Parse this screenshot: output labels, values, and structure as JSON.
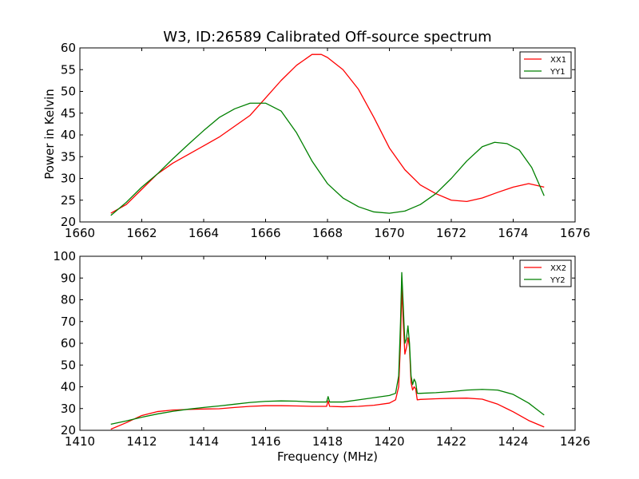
{
  "chart_data": [
    {
      "type": "line",
      "title": "W3, ID:26589 Calibrated Off-source spectrum",
      "xlabel": "",
      "ylabel": "Power in Kelvin",
      "xlim": [
        1660,
        1676
      ],
      "ylim": [
        20,
        60
      ],
      "xticks": [
        1660,
        1662,
        1664,
        1666,
        1668,
        1670,
        1672,
        1674,
        1676
      ],
      "yticks": [
        20,
        25,
        30,
        35,
        40,
        45,
        50,
        55,
        60
      ],
      "legend_position": "top-right",
      "series": [
        {
          "name": "XX1",
          "color": "#ff0000",
          "points": [
            [
              1661.0,
              22.0
            ],
            [
              1661.5,
              24.0
            ],
            [
              1662.0,
              27.5
            ],
            [
              1662.5,
              31.0
            ],
            [
              1663.0,
              33.5
            ],
            [
              1663.5,
              35.5
            ],
            [
              1664.0,
              37.5
            ],
            [
              1664.5,
              39.5
            ],
            [
              1665.0,
              42.0
            ],
            [
              1665.5,
              44.5
            ],
            [
              1666.0,
              48.5
            ],
            [
              1666.5,
              52.5
            ],
            [
              1667.0,
              56.0
            ],
            [
              1667.5,
              58.5
            ],
            [
              1667.8,
              58.5
            ],
            [
              1668.0,
              57.8
            ],
            [
              1668.5,
              55.0
            ],
            [
              1669.0,
              50.5
            ],
            [
              1669.5,
              44.0
            ],
            [
              1670.0,
              37.0
            ],
            [
              1670.5,
              32.0
            ],
            [
              1671.0,
              28.5
            ],
            [
              1671.5,
              26.5
            ],
            [
              1672.0,
              25.0
            ],
            [
              1672.5,
              24.7
            ],
            [
              1673.0,
              25.5
            ],
            [
              1673.5,
              26.8
            ],
            [
              1674.0,
              28.0
            ],
            [
              1674.5,
              28.8
            ],
            [
              1675.0,
              28.0
            ]
          ]
        },
        {
          "name": "YY1",
          "color": "#008000",
          "points": [
            [
              1661.0,
              21.5
            ],
            [
              1661.5,
              24.5
            ],
            [
              1662.0,
              28.0
            ],
            [
              1662.5,
              31.0
            ],
            [
              1663.0,
              34.5
            ],
            [
              1663.5,
              37.8
            ],
            [
              1664.0,
              41.0
            ],
            [
              1664.5,
              44.0
            ],
            [
              1665.0,
              46.0
            ],
            [
              1665.5,
              47.3
            ],
            [
              1666.0,
              47.3
            ],
            [
              1666.5,
              45.5
            ],
            [
              1667.0,
              40.5
            ],
            [
              1667.5,
              34.0
            ],
            [
              1668.0,
              28.8
            ],
            [
              1668.5,
              25.5
            ],
            [
              1669.0,
              23.5
            ],
            [
              1669.5,
              22.3
            ],
            [
              1670.0,
              22.0
            ],
            [
              1670.5,
              22.5
            ],
            [
              1671.0,
              24.0
            ],
            [
              1671.5,
              26.5
            ],
            [
              1672.0,
              30.0
            ],
            [
              1672.5,
              34.0
            ],
            [
              1673.0,
              37.3
            ],
            [
              1673.4,
              38.3
            ],
            [
              1673.8,
              38.0
            ],
            [
              1674.2,
              36.5
            ],
            [
              1674.6,
              32.5
            ],
            [
              1675.0,
              26.0
            ]
          ]
        }
      ]
    },
    {
      "type": "line",
      "title": "",
      "xlabel": "Frequency (MHz)",
      "ylabel": "",
      "xlim": [
        1410,
        1426
      ],
      "ylim": [
        20,
        100
      ],
      "xticks": [
        1410,
        1412,
        1414,
        1416,
        1418,
        1420,
        1422,
        1424,
        1426
      ],
      "yticks": [
        20,
        30,
        40,
        50,
        60,
        70,
        80,
        90,
        100
      ],
      "legend_position": "top-right",
      "series": [
        {
          "name": "XX2",
          "color": "#ff0000",
          "points": [
            [
              1411.0,
              20.5
            ],
            [
              1411.5,
              23.5
            ],
            [
              1412.0,
              26.8
            ],
            [
              1412.5,
              28.6
            ],
            [
              1413.0,
              29.3
            ],
            [
              1413.5,
              29.6
            ],
            [
              1414.0,
              29.8
            ],
            [
              1414.5,
              29.9
            ],
            [
              1415.0,
              30.5
            ],
            [
              1415.5,
              31.0
            ],
            [
              1416.0,
              31.3
            ],
            [
              1416.5,
              31.3
            ],
            [
              1417.0,
              31.2
            ],
            [
              1417.5,
              31.0
            ],
            [
              1417.97,
              31.0
            ],
            [
              1418.02,
              33.5
            ],
            [
              1418.07,
              31.0
            ],
            [
              1418.5,
              30.8
            ],
            [
              1419.0,
              31.0
            ],
            [
              1419.5,
              31.5
            ],
            [
              1420.0,
              32.5
            ],
            [
              1420.2,
              34.0
            ],
            [
              1420.3,
              40.0
            ],
            [
              1420.36,
              60.0
            ],
            [
              1420.4,
              86.0
            ],
            [
              1420.44,
              72.0
            ],
            [
              1420.5,
              55.0
            ],
            [
              1420.55,
              58.0
            ],
            [
              1420.6,
              62.5
            ],
            [
              1420.65,
              58.0
            ],
            [
              1420.7,
              42.0
            ],
            [
              1420.75,
              38.5
            ],
            [
              1420.8,
              40.0
            ],
            [
              1420.85,
              39.0
            ],
            [
              1420.9,
              34.0
            ],
            [
              1421.0,
              34.2
            ],
            [
              1421.5,
              34.5
            ],
            [
              1422.0,
              34.7
            ],
            [
              1422.5,
              34.8
            ],
            [
              1423.0,
              34.3
            ],
            [
              1423.5,
              32.0
            ],
            [
              1424.0,
              28.5
            ],
            [
              1424.5,
              24.5
            ],
            [
              1425.0,
              21.5
            ]
          ]
        },
        {
          "name": "YY2",
          "color": "#008000",
          "points": [
            [
              1411.0,
              22.8
            ],
            [
              1411.5,
              24.3
            ],
            [
              1412.0,
              26.0
            ],
            [
              1412.5,
              27.5
            ],
            [
              1413.0,
              28.7
            ],
            [
              1413.5,
              29.7
            ],
            [
              1414.0,
              30.5
            ],
            [
              1414.5,
              31.2
            ],
            [
              1415.0,
              32.0
            ],
            [
              1415.5,
              32.8
            ],
            [
              1416.0,
              33.3
            ],
            [
              1416.5,
              33.5
            ],
            [
              1417.0,
              33.4
            ],
            [
              1417.5,
              33.0
            ],
            [
              1417.97,
              33.0
            ],
            [
              1418.02,
              35.5
            ],
            [
              1418.07,
              33.0
            ],
            [
              1418.5,
              33.0
            ],
            [
              1419.0,
              34.0
            ],
            [
              1419.5,
              35.0
            ],
            [
              1420.0,
              36.0
            ],
            [
              1420.2,
              37.0
            ],
            [
              1420.3,
              45.0
            ],
            [
              1420.36,
              70.0
            ],
            [
              1420.4,
              92.5
            ],
            [
              1420.44,
              80.0
            ],
            [
              1420.5,
              60.0
            ],
            [
              1420.55,
              62.0
            ],
            [
              1420.6,
              68.0
            ],
            [
              1420.65,
              60.0
            ],
            [
              1420.7,
              45.0
            ],
            [
              1420.75,
              41.0
            ],
            [
              1420.8,
              43.5
            ],
            [
              1420.85,
              42.0
            ],
            [
              1420.9,
              37.0
            ],
            [
              1421.0,
              37.0
            ],
            [
              1421.5,
              37.3
            ],
            [
              1422.0,
              37.8
            ],
            [
              1422.5,
              38.5
            ],
            [
              1423.0,
              38.8
            ],
            [
              1423.5,
              38.5
            ],
            [
              1424.0,
              36.5
            ],
            [
              1424.5,
              32.5
            ],
            [
              1425.0,
              27.0
            ]
          ]
        }
      ]
    }
  ]
}
